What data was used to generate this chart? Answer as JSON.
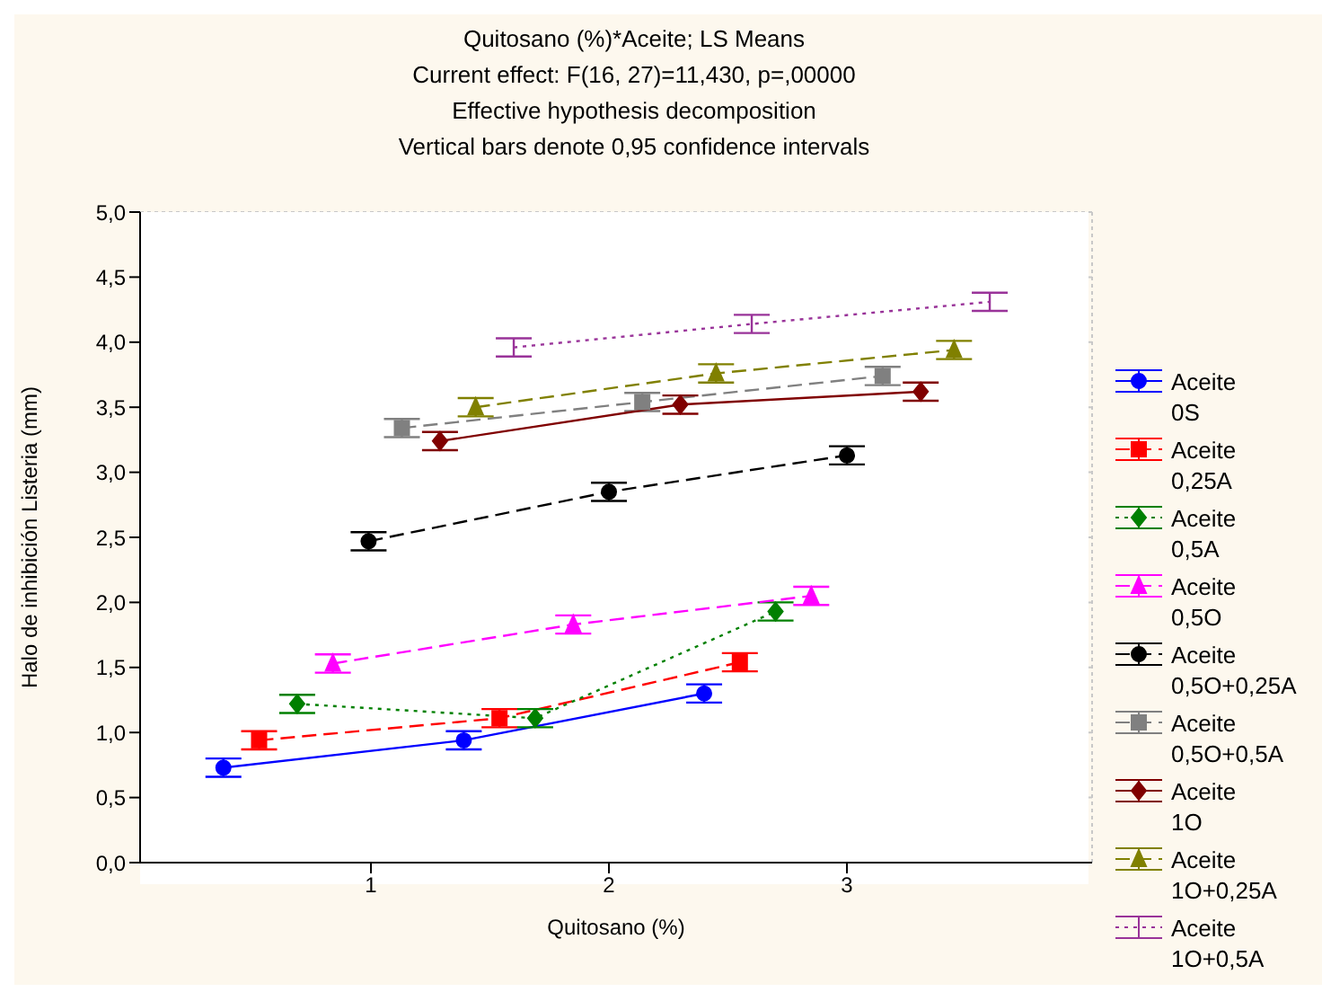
{
  "chart_data": {
    "type": "line",
    "title": "Quitosano (%)*Aceite; LS Means",
    "subtitle": "Current effect: F(16, 27)=11,430, p=,00000",
    "annotations": [
      "Effective hypothesis decomposition",
      "Vertical bars denote 0,95 confidence intervals"
    ],
    "xlabel": "Quitosano (%)",
    "ylabel": "Halo de inhibición Listeria (mm)",
    "xlim": [
      0.03,
      4.03
    ],
    "xticks": [
      1,
      2,
      3
    ],
    "ylim": [
      0,
      5
    ],
    "yticks": [
      {
        "value": 0,
        "label": "0,0"
      },
      {
        "value": 0.5,
        "label": "0,5"
      },
      {
        "value": 1,
        "label": "1,0"
      },
      {
        "value": 1.5,
        "label": "1,5"
      },
      {
        "value": 2,
        "label": "2,0"
      },
      {
        "value": 2.5,
        "label": "2,5"
      },
      {
        "value": 3,
        "label": "3,0"
      },
      {
        "value": 3.5,
        "label": "3,5"
      },
      {
        "value": 4,
        "label": "4,0"
      },
      {
        "value": 4.5,
        "label": "4,5"
      },
      {
        "value": 5,
        "label": "5,0"
      }
    ],
    "grid": true,
    "legend": "right",
    "series": [
      {
        "name": "Aceite 0S",
        "color": "#0000ff",
        "marker": "circle",
        "line_style": "solid",
        "x": [
          0.38,
          1.39,
          2.4
        ],
        "values": [
          0.73,
          0.94,
          1.3
        ],
        "errors": [
          0.07,
          0.07,
          0.07
        ]
      },
      {
        "name": "Aceite 0,25A",
        "color": "#ff0000",
        "marker": "square",
        "line_style": "dashed",
        "x": [
          0.53,
          1.54,
          2.55
        ],
        "values": [
          0.94,
          1.11,
          1.54
        ],
        "errors": [
          0.07,
          0.07,
          0.07
        ]
      },
      {
        "name": "Aceite 0,5A",
        "color": "#008000",
        "marker": "diamond",
        "line_style": "dotted",
        "x": [
          0.69,
          1.69,
          2.7
        ],
        "values": [
          1.22,
          1.11,
          1.93
        ],
        "errors": [
          0.07,
          0.07,
          0.07
        ]
      },
      {
        "name": "Aceite 0,5O",
        "color": "#ff00ff",
        "marker": "triangle",
        "line_style": "dashed",
        "x": [
          0.84,
          1.85,
          2.85
        ],
        "values": [
          1.53,
          1.83,
          2.05
        ],
        "errors": [
          0.07,
          0.07,
          0.07
        ]
      },
      {
        "name": "Aceite 0,5O+0,25A",
        "color": "#000000",
        "marker": "circle",
        "line_style": "dashed",
        "x": [
          0.99,
          2.0,
          3.0
        ],
        "values": [
          2.47,
          2.85,
          3.13
        ],
        "errors": [
          0.07,
          0.07,
          0.07
        ]
      },
      {
        "name": "Aceite 0,5O+0,5A",
        "color": "#808080",
        "marker": "square",
        "line_style": "dashed",
        "x": [
          1.13,
          2.14,
          3.15
        ],
        "values": [
          3.34,
          3.54,
          3.74
        ],
        "errors": [
          0.07,
          0.07,
          0.07
        ]
      },
      {
        "name": "Aceite 1O",
        "color": "#800000",
        "marker": "diamond",
        "line_style": "solid",
        "x": [
          1.29,
          2.3,
          3.31
        ],
        "values": [
          3.24,
          3.52,
          3.62
        ],
        "errors": [
          0.07,
          0.07,
          0.07
        ]
      },
      {
        "name": "Aceite 1O+0,25A",
        "color": "#808000",
        "marker": "triangle",
        "line_style": "dashed",
        "x": [
          1.44,
          2.45,
          3.45
        ],
        "values": [
          3.5,
          3.76,
          3.94
        ],
        "errors": [
          0.07,
          0.07,
          0.07
        ]
      },
      {
        "name": "Aceite 1O+0,5A",
        "color": "#993399",
        "marker": "none",
        "line_style": "dotted",
        "x": [
          1.6,
          2.6,
          3.6
        ],
        "values": [
          3.96,
          4.14,
          4.31
        ],
        "errors": [
          0.07,
          0.07,
          0.07
        ]
      }
    ]
  }
}
